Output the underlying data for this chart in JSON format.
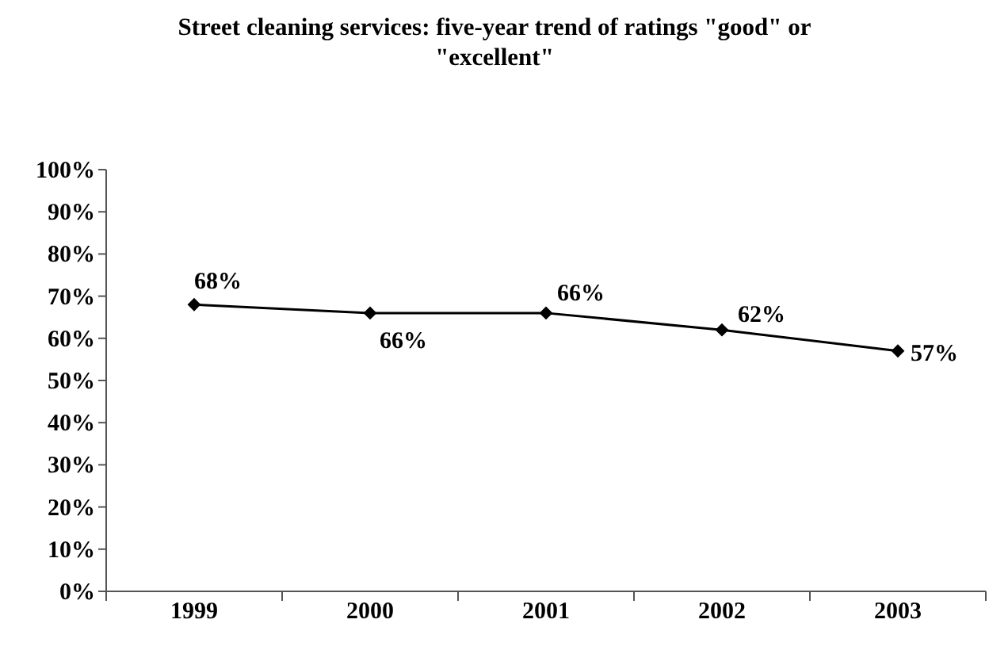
{
  "chart_data": {
    "type": "line",
    "title": "Street cleaning services: five-year trend of ratings \"good\" or \"excellent\"",
    "categories": [
      "1999",
      "2000",
      "2001",
      "2002",
      "2003"
    ],
    "values": [
      68,
      66,
      66,
      62,
      57
    ],
    "color": "#000000",
    "value_labels": [
      "68%",
      "66%",
      "66%",
      "62%",
      "57%"
    ],
    "ylim": [
      0,
      100
    ],
    "yticks": [
      {
        "value": 0,
        "label": "0%"
      },
      {
        "value": 10,
        "label": "10%"
      },
      {
        "value": 20,
        "label": "20%"
      },
      {
        "value": 30,
        "label": "30%"
      },
      {
        "value": 40,
        "label": "40%"
      },
      {
        "value": 50,
        "label": "50%"
      },
      {
        "value": 60,
        "label": "60%"
      },
      {
        "value": 70,
        "label": "70%"
      },
      {
        "value": 80,
        "label": "80%"
      },
      {
        "value": 90,
        "label": "90%"
      },
      {
        "value": 100,
        "label": "100%"
      }
    ],
    "marker": "diamond",
    "line_style": "solid"
  }
}
